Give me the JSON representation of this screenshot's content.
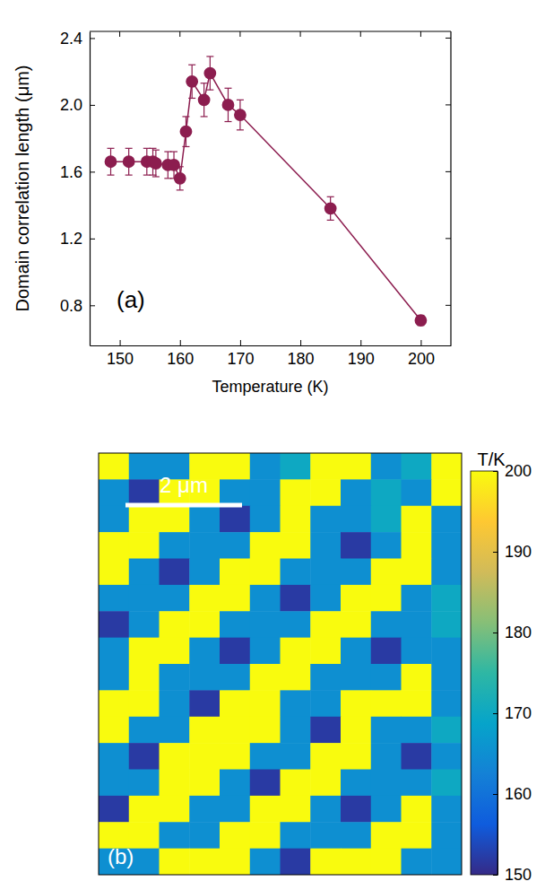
{
  "chart_data": [
    {
      "type": "line",
      "marker": "circle",
      "line_style": "solid",
      "color": "#8c1d4f",
      "x_label": "Temperature (K)",
      "y_label": "Domain correlation length (μm)",
      "annotations": [
        "(a)"
      ],
      "x": [
        148.5,
        151.5,
        154.5,
        155.5,
        156,
        158,
        159,
        160,
        161,
        162,
        164,
        165,
        168,
        170,
        185,
        200
      ],
      "values": [
        1.66,
        1.66,
        1.66,
        1.66,
        1.65,
        1.64,
        1.64,
        1.56,
        1.84,
        2.14,
        2.03,
        2.19,
        2.0,
        1.94,
        1.38,
        0.71
      ],
      "errors": [
        0.08,
        0.08,
        0.08,
        0.08,
        0.08,
        0.08,
        0.08,
        0.07,
        0.09,
        0.1,
        0.1,
        0.1,
        0.1,
        0.09,
        0.07,
        0.03
      ],
      "xlim": [
        145,
        205
      ],
      "xticks": [
        150,
        160,
        170,
        180,
        190,
        200
      ],
      "ylim": [
        0.56,
        2.44
      ],
      "yticks": [
        0.8,
        1.2,
        1.6,
        2.0,
        2.4
      ],
      "grid": false
    },
    {
      "type": "heatmap",
      "tick_labels": false,
      "annotations": [
        "2 μm",
        "(b)"
      ],
      "colorbar_title": "T/K",
      "colorbar_range": [
        150,
        200
      ],
      "colorbar_ticks": [
        150,
        160,
        170,
        180,
        190,
        200
      ],
      "cells": [
        [
          200,
          165,
          165,
          200,
          200,
          165,
          170,
          200,
          200,
          165,
          170,
          200
        ],
        [
          165,
          152,
          200,
          200,
          165,
          165,
          200,
          200,
          165,
          170,
          165,
          200
        ],
        [
          165,
          200,
          200,
          165,
          152,
          165,
          200,
          165,
          165,
          170,
          200,
          165
        ],
        [
          200,
          200,
          165,
          165,
          165,
          200,
          200,
          165,
          152,
          165,
          200,
          165
        ],
        [
          200,
          165,
          152,
          165,
          200,
          200,
          165,
          165,
          165,
          200,
          200,
          165
        ],
        [
          165,
          165,
          165,
          200,
          200,
          165,
          152,
          165,
          200,
          200,
          165,
          170
        ],
        [
          152,
          165,
          200,
          200,
          165,
          165,
          165,
          200,
          200,
          165,
          165,
          170
        ],
        [
          165,
          200,
          200,
          165,
          152,
          165,
          200,
          200,
          165,
          152,
          165,
          165
        ],
        [
          165,
          200,
          165,
          165,
          165,
          200,
          200,
          165,
          165,
          165,
          200,
          165
        ],
        [
          200,
          200,
          165,
          152,
          200,
          200,
          165,
          165,
          200,
          200,
          200,
          165
        ],
        [
          200,
          165,
          165,
          200,
          200,
          200,
          165,
          152,
          200,
          165,
          165,
          170
        ],
        [
          165,
          152,
          200,
          200,
          200,
          165,
          165,
          200,
          200,
          165,
          152,
          165
        ],
        [
          165,
          165,
          200,
          200,
          165,
          152,
          200,
          200,
          165,
          165,
          165,
          170
        ],
        [
          152,
          200,
          200,
          165,
          165,
          200,
          200,
          165,
          152,
          165,
          200,
          165
        ],
        [
          200,
          200,
          165,
          165,
          200,
          200,
          165,
          165,
          165,
          200,
          200,
          165
        ],
        [
          165,
          165,
          200,
          200,
          200,
          165,
          152,
          200,
          200,
          200,
          165,
          165
        ]
      ]
    }
  ]
}
